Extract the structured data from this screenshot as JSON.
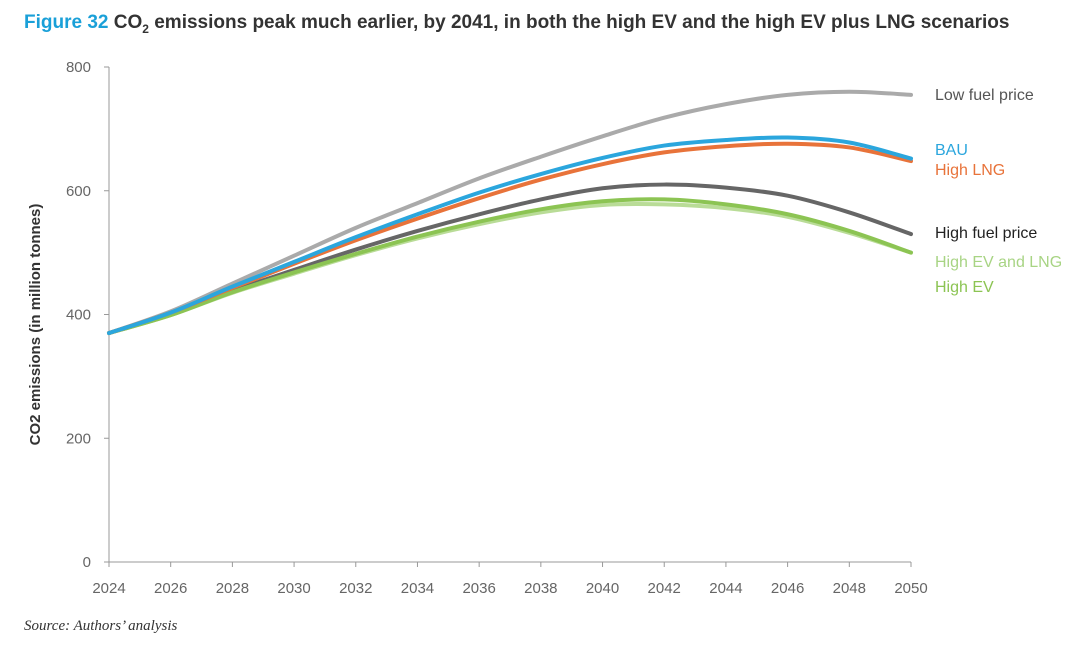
{
  "figure": {
    "label": "Figure 32",
    "title_pre": "CO",
    "title_sub": "2",
    "title_post": " emissions peak much earlier, by 2041, in both the high EV and the high EV plus LNG scenarios",
    "source": "Source: Authors’ analysis"
  },
  "chart_data": {
    "type": "line",
    "ylabel": "CO2 emissions (in million tonnes)",
    "xlabel": "",
    "ylim": [
      0,
      800
    ],
    "xlim": [
      2024,
      2050
    ],
    "yticks": [
      0,
      200,
      400,
      600,
      800
    ],
    "xticks": [
      2024,
      2026,
      2028,
      2030,
      2032,
      2034,
      2036,
      2038,
      2040,
      2042,
      2044,
      2046,
      2048,
      2050
    ],
    "grid": false,
    "legend": "right, labels at line ends",
    "x": [
      2024,
      2026,
      2028,
      2030,
      2032,
      2034,
      2036,
      2038,
      2040,
      2042,
      2044,
      2046,
      2048,
      2050
    ],
    "series": [
      {
        "name": "Low fuel price",
        "color": "#aaaaaa",
        "values": [
          370,
          405,
          450,
          495,
          540,
          580,
          620,
          655,
          688,
          718,
          740,
          755,
          760,
          755
        ]
      },
      {
        "name": "BAU",
        "color": "#2ba6dd",
        "values": [
          370,
          403,
          445,
          485,
          525,
          562,
          597,
          627,
          653,
          673,
          682,
          686,
          678,
          652
        ]
      },
      {
        "name": "High LNG",
        "color": "#e8733a",
        "values": [
          370,
          403,
          443,
          482,
          520,
          555,
          588,
          618,
          643,
          662,
          672,
          676,
          670,
          648
        ]
      },
      {
        "name": "High fuel price",
        "color": "#666666",
        "values": [
          370,
          400,
          438,
          472,
          505,
          535,
          562,
          586,
          604,
          610,
          605,
          592,
          565,
          530
        ]
      },
      {
        "name": "High EV and LNG",
        "color": "#b9dc97",
        "values": [
          370,
          399,
          435,
          466,
          496,
          523,
          546,
          565,
          577,
          578,
          572,
          558,
          532,
          500
        ]
      },
      {
        "name": "High EV",
        "color": "#8cc453",
        "values": [
          370,
          399,
          436,
          468,
          498,
          526,
          550,
          570,
          583,
          586,
          578,
          562,
          535,
          500
        ]
      }
    ]
  }
}
